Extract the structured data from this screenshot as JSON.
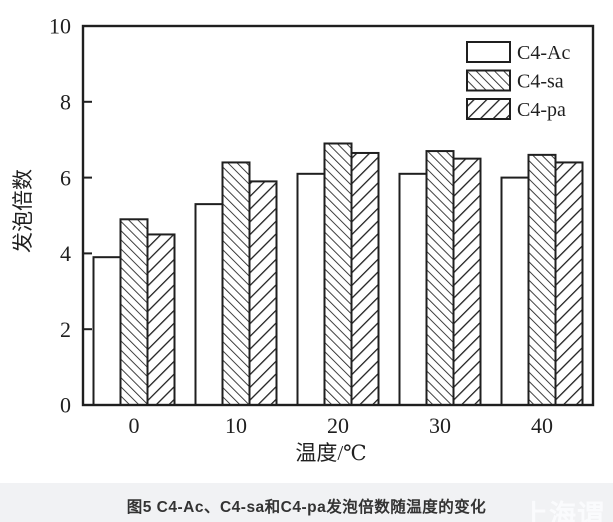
{
  "chart_data": {
    "type": "bar",
    "title": "",
    "categories": [
      "0",
      "10",
      "20",
      "30",
      "40"
    ],
    "series": [
      {
        "name": "C4-Ac",
        "hatch": "none",
        "values": [
          3.9,
          5.3,
          6.1,
          6.1,
          6.0
        ]
      },
      {
        "name": "C4-sa",
        "hatch": "backslash",
        "values": [
          4.9,
          6.4,
          6.9,
          6.7,
          6.6
        ]
      },
      {
        "name": "C4-pa",
        "hatch": "slash",
        "values": [
          4.5,
          5.9,
          6.65,
          6.5,
          6.4
        ]
      }
    ],
    "xlabel": "温度/℃",
    "ylabel": "发泡倍数",
    "ylim": [
      0,
      10
    ],
    "yticks": [
      0,
      2,
      4,
      6,
      8,
      10
    ],
    "grid": false,
    "legend_position": "top-right",
    "bar_fill": "#ffffff",
    "ink_color": "#1f1f1f"
  },
  "caption": {
    "text": "图5  C4-Ac、C4-sa和C4-pa发泡倍数随温度的变化"
  },
  "watermark": {
    "text": "上海谓"
  },
  "colors": {
    "background": "#ffffff",
    "caption_bar": "#f1f2f4",
    "caption_text": "#333333",
    "watermark_text": "#fafbfd",
    "ink": "#1f1f1f"
  }
}
